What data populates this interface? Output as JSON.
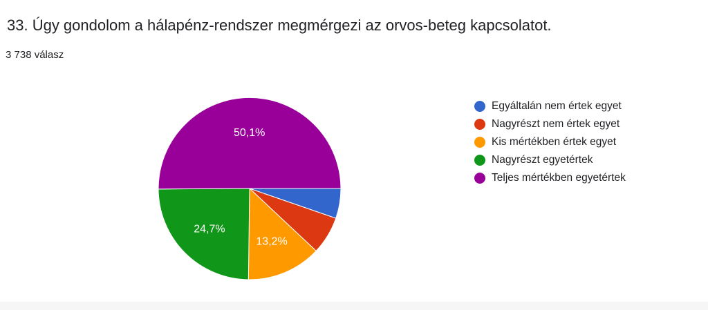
{
  "header": {
    "title": "33. Úgy gondolom a hálapénz-rendszer megmérgezi az orvos-beteg kapcsolatot.",
    "response_count": "3 738 válasz"
  },
  "chart_data": {
    "type": "pie",
    "title": "33. Úgy gondolom a hálapénz-rendszer megmérgezi az orvos-beteg kapcsolatot.",
    "categories": [
      "Egyáltalán nem értek egyet",
      "Nagyrészt nem értek egyet",
      "Kis mértékben értek egyet",
      "Nagyrészt egyetértek",
      "Teljes mértékben egyetértek"
    ],
    "values": [
      5.3,
      6.7,
      13.2,
      24.7,
      50.1
    ],
    "value_labels": [
      "",
      "",
      "13,2%",
      "24,7%",
      "50,1%"
    ],
    "colors": [
      "#3366cc",
      "#dc3912",
      "#ff9900",
      "#109618",
      "#990099"
    ],
    "legend_position": "right",
    "start": "3 o'clock",
    "direction": "clockwise"
  }
}
